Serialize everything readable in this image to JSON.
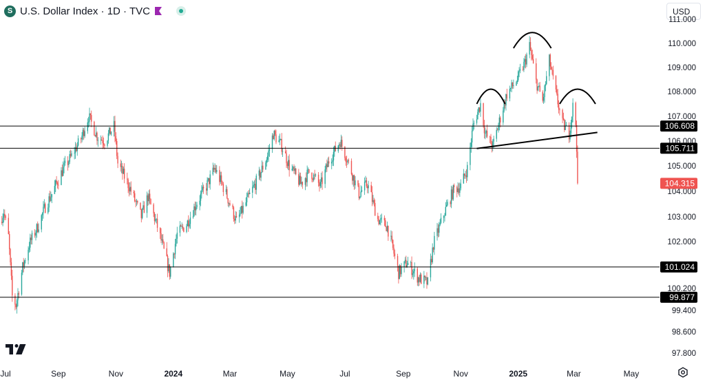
{
  "header": {
    "symbol_icon": "S",
    "title": "U.S. Dollar Index · 1D · TVC",
    "flag_color": "#9c27b0",
    "live_color": "#22ab94"
  },
  "currency": "USD",
  "colors": {
    "up": "#26a69a",
    "down": "#ef5350",
    "line": "#000000",
    "axis_text": "#131722"
  },
  "chart_data": {
    "type": "candlestick",
    "title": "U.S. Dollar Index · 1D · TVC",
    "y_ticks": [
      "111.000",
      "110.000",
      "109.000",
      "108.000",
      "107.000",
      "106.000",
      "105.000",
      "104.000",
      "103.000",
      "102.000",
      "100.200",
      "99.400",
      "98.600",
      "97.800"
    ],
    "x_ticks": [
      "Jul",
      "Sep",
      "Nov",
      "2024",
      "Mar",
      "May",
      "Jul",
      "Sep",
      "Nov",
      "2025",
      "Mar",
      "May"
    ],
    "x_range": [
      "2023-07-01",
      "2025-05-31"
    ],
    "price_anchors": [
      [
        "2023-07-01",
        102.8
      ],
      [
        "2023-07-05",
        103.2
      ],
      [
        "2023-07-10",
        102.2
      ],
      [
        "2023-07-14",
        99.9
      ],
      [
        "2023-07-18",
        99.6
      ],
      [
        "2023-07-25",
        101.0
      ],
      [
        "2023-08-01",
        101.9
      ],
      [
        "2023-08-10",
        102.6
      ],
      [
        "2023-08-18",
        103.4
      ],
      [
        "2023-08-25",
        103.9
      ],
      [
        "2023-09-05",
        104.8
      ],
      [
        "2023-09-15",
        105.4
      ],
      [
        "2023-09-25",
        106.1
      ],
      [
        "2023-10-03",
        107.0
      ],
      [
        "2023-10-12",
        106.2
      ],
      [
        "2023-10-20",
        106.0
      ],
      [
        "2023-10-30",
        106.6
      ],
      [
        "2023-11-03",
        105.1
      ],
      [
        "2023-11-15",
        104.2
      ],
      [
        "2023-11-28",
        103.0
      ],
      [
        "2023-12-05",
        103.8
      ],
      [
        "2023-12-15",
        102.6
      ],
      [
        "2023-12-28",
        100.8
      ],
      [
        "2024-01-05",
        102.3
      ],
      [
        "2024-01-15",
        102.7
      ],
      [
        "2024-01-25",
        103.5
      ],
      [
        "2024-02-05",
        104.2
      ],
      [
        "2024-02-14",
        104.9
      ],
      [
        "2024-02-25",
        104.0
      ],
      [
        "2024-03-08",
        102.8
      ],
      [
        "2024-03-20",
        103.7
      ],
      [
        "2024-04-01",
        104.6
      ],
      [
        "2024-04-10",
        105.4
      ],
      [
        "2024-04-16",
        106.3
      ],
      [
        "2024-04-25",
        105.8
      ],
      [
        "2024-05-03",
        105.0
      ],
      [
        "2024-05-15",
        104.3
      ],
      [
        "2024-05-25",
        104.8
      ],
      [
        "2024-06-05",
        104.2
      ],
      [
        "2024-06-14",
        105.2
      ],
      [
        "2024-06-26",
        106.0
      ],
      [
        "2024-07-05",
        105.1
      ],
      [
        "2024-07-16",
        103.9
      ],
      [
        "2024-07-25",
        104.3
      ],
      [
        "2024-08-05",
        102.9
      ],
      [
        "2024-08-15",
        102.6
      ],
      [
        "2024-08-27",
        100.8
      ],
      [
        "2024-09-05",
        101.2
      ],
      [
        "2024-09-17",
        100.6
      ],
      [
        "2024-09-27",
        100.4
      ],
      [
        "2024-10-03",
        101.9
      ],
      [
        "2024-10-15",
        103.2
      ],
      [
        "2024-10-25",
        104.1
      ],
      [
        "2024-11-01",
        104.2
      ],
      [
        "2024-11-08",
        104.9
      ],
      [
        "2024-11-14",
        106.6
      ],
      [
        "2024-11-22",
        107.5
      ],
      [
        "2024-11-27",
        106.3
      ],
      [
        "2024-12-05",
        105.8
      ],
      [
        "2024-12-12",
        106.8
      ],
      [
        "2024-12-20",
        107.9
      ],
      [
        "2024-12-31",
        108.5
      ],
      [
        "2025-01-08",
        109.2
      ],
      [
        "2025-01-13",
        109.9
      ],
      [
        "2025-01-20",
        108.4
      ],
      [
        "2025-01-27",
        107.6
      ],
      [
        "2025-02-03",
        109.3
      ],
      [
        "2025-02-10",
        107.9
      ],
      [
        "2025-02-17",
        106.7
      ],
      [
        "2025-02-24",
        106.3
      ],
      [
        "2025-02-28",
        107.4
      ],
      [
        "2025-03-03",
        106.7
      ],
      [
        "2025-03-04",
        105.8
      ],
      [
        "2025-03-05",
        104.3
      ]
    ],
    "horizontal_levels": [
      106.608,
      105.711,
      101.024,
      99.877
    ],
    "last_price": 104.315,
    "annotations": {
      "head_and_shoulders": {
        "left_shoulder": {
          "from": [
            "2024-11-18",
            107.5
          ],
          "peak": [
            "2024-12-03",
            108.1
          ],
          "to": [
            "2024-12-18",
            107.5
          ]
        },
        "head": {
          "from": [
            "2024-12-27",
            109.8
          ],
          "peak": [
            "2025-01-16",
            110.45
          ],
          "to": [
            "2025-02-05",
            109.8
          ]
        },
        "right_shoulder": {
          "from": [
            "2025-02-14",
            107.5
          ],
          "peak": [
            "2025-03-05",
            108.1
          ],
          "to": [
            "2025-03-24",
            107.5
          ]
        }
      },
      "neckline": {
        "from": [
          "2024-11-18",
          105.7
        ],
        "to": [
          "2025-03-26",
          106.35
        ]
      }
    }
  }
}
